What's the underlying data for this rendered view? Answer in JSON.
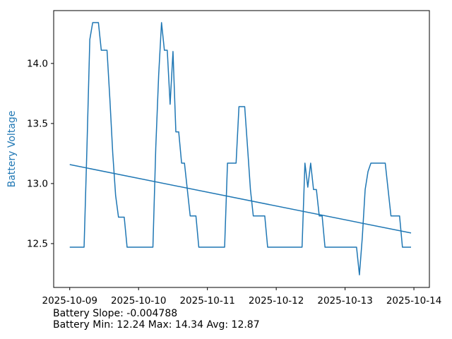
{
  "figure": {
    "background": "#ffffff",
    "accent": "#1f77b4",
    "axis_color": "#000000",
    "text_color": "#000000"
  },
  "annotations": {
    "line1": "Battery Slope: -0.004788",
    "line2": "Battery Min: 12.24 Max: 14.34 Avg: 12.87"
  },
  "chart_data": {
    "type": "line",
    "title": "",
    "xlabel": "",
    "ylabel": "Battery Voltage",
    "ylabel_color": "#1f77b4",
    "grid": false,
    "legend": null,
    "x_start_label": "2025-10-09",
    "x_step_hours": 1,
    "x_tick_hours": [
      0,
      24,
      48,
      72,
      96,
      120
    ],
    "x_tick_labels": [
      "2025-10-09",
      "2025-10-10",
      "2025-10-11",
      "2025-10-12",
      "2025-10-13",
      "2025-10-14"
    ],
    "y_ticks": [
      12.5,
      13.0,
      13.5,
      14.0
    ],
    "xlim_hours": [
      -5.6,
      125.4
    ],
    "ylim": [
      12.135,
      14.44
    ],
    "stats": {
      "slope": -0.004788,
      "min": 12.24,
      "max": 14.34,
      "avg": 12.87
    },
    "series": [
      {
        "name": "Battery Voltage",
        "color": "#1f77b4",
        "start_hour": 0,
        "values": [
          12.47,
          12.47,
          12.47,
          12.47,
          12.47,
          12.47,
          13.3,
          14.2,
          14.34,
          14.34,
          14.34,
          14.11,
          14.11,
          14.11,
          13.7,
          13.25,
          12.9,
          12.72,
          12.72,
          12.72,
          12.47,
          12.47,
          12.47,
          12.47,
          12.47,
          12.47,
          12.47,
          12.47,
          12.47,
          12.47,
          13.3,
          13.9,
          14.34,
          14.11,
          14.11,
          13.66,
          14.1,
          13.43,
          13.43,
          13.17,
          13.17,
          12.95,
          12.73,
          12.73,
          12.73,
          12.47,
          12.47,
          12.47,
          12.47,
          12.47,
          12.47,
          12.47,
          12.47,
          12.47,
          12.47,
          13.17,
          13.17,
          13.17,
          13.17,
          13.64,
          13.64,
          13.64,
          13.3,
          12.95,
          12.73,
          12.73,
          12.73,
          12.73,
          12.73,
          12.47,
          12.47,
          12.47,
          12.47,
          12.47,
          12.47,
          12.47,
          12.47,
          12.47,
          12.47,
          12.47,
          12.47,
          12.47,
          13.17,
          12.97,
          13.17,
          12.95,
          12.95,
          12.73,
          12.73,
          12.47,
          12.47,
          12.47,
          12.47,
          12.47,
          12.47,
          12.47,
          12.47,
          12.47,
          12.47,
          12.47,
          12.47,
          12.24,
          12.55,
          12.95,
          13.1,
          13.17,
          13.17,
          13.17,
          13.17,
          13.17,
          13.17,
          12.95,
          12.73,
          12.73,
          12.73,
          12.73,
          12.47,
          12.47,
          12.47,
          12.47
        ]
      },
      {
        "name": "Battery Trend",
        "color": "#1f77b4",
        "trend": true,
        "start_hour": 0,
        "end_hour": 119,
        "start_value": 13.158,
        "slope_per_hour": -0.004788
      }
    ]
  }
}
